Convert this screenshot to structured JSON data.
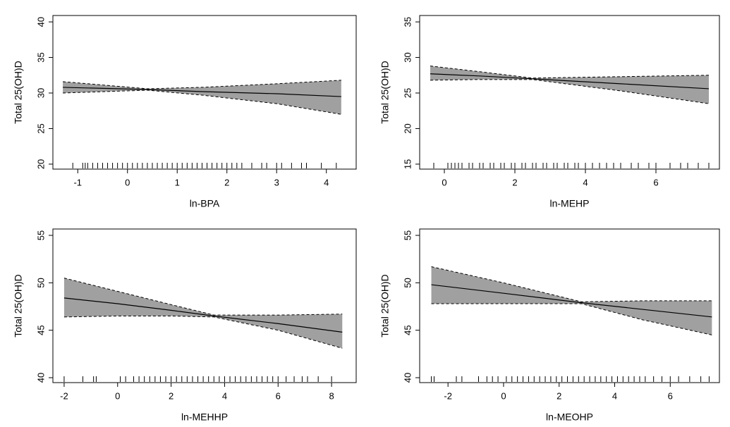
{
  "chart_data": [
    {
      "type": "line",
      "xlabel": "ln-BPA",
      "ylabel": "Total 25(OH)D",
      "x": [
        -1.3,
        0.4,
        1.5,
        3,
        4.3
      ],
      "values": [
        30.8,
        30.5,
        30.2,
        29.9,
        29.5
      ],
      "upper": [
        31.6,
        30.6,
        30.8,
        31.3,
        31.8
      ],
      "lower": [
        30.0,
        30.4,
        29.7,
        28.5,
        27.0
      ],
      "rug": [
        -1.1,
        -0.9,
        -0.85,
        -0.8,
        -0.7,
        -0.6,
        -0.5,
        -0.4,
        -0.3,
        -0.2,
        -0.1,
        0,
        0.1,
        0.2,
        0.3,
        0.4,
        0.5,
        0.6,
        0.7,
        0.8,
        0.9,
        1.0,
        1.1,
        1.2,
        1.3,
        1.4,
        1.5,
        1.6,
        1.7,
        1.8,
        1.9,
        2.0,
        2.1,
        2.2,
        2.3,
        2.5,
        2.7,
        2.8,
        3.0,
        3.1,
        3.3,
        3.5,
        3.6,
        3.9,
        4.2
      ],
      "color": "#000000",
      "band_color": "#a0a0a0",
      "xlim": [
        -1.5,
        4.6
      ],
      "ylim": [
        19.3,
        40.9
      ],
      "xticks": [
        -1,
        0,
        1,
        2,
        3,
        4
      ],
      "yticks": [
        20,
        25,
        30,
        35,
        40
      ]
    },
    {
      "type": "line",
      "xlabel": "ln-MEHP",
      "ylabel": "Total 25(OH)D",
      "x": [
        -0.4,
        1,
        2.5,
        5,
        7.5
      ],
      "values": [
        27.7,
        27.4,
        27.0,
        26.3,
        25.6
      ],
      "upper": [
        28.8,
        28.0,
        27.1,
        27.3,
        27.5
      ],
      "lower": [
        26.8,
        26.9,
        26.9,
        25.3,
        23.5
      ],
      "rug": [
        -0.3,
        0.1,
        0.2,
        0.3,
        0.4,
        0.5,
        0.7,
        0.8,
        1.0,
        1.1,
        1.3,
        1.4,
        1.6,
        1.7,
        1.9,
        2.0,
        2.2,
        2.3,
        2.5,
        2.6,
        2.8,
        2.9,
        3.1,
        3.2,
        3.4,
        3.5,
        3.7,
        3.8,
        4.0,
        4.2,
        4.4,
        4.6,
        4.8,
        5.0,
        5.3,
        5.5,
        5.8,
        6.0,
        6.4,
        6.7,
        6.9,
        7.2,
        7.5
      ],
      "color": "#000000",
      "band_color": "#a0a0a0",
      "xlim": [
        -0.7,
        7.8
      ],
      "ylim": [
        14.3,
        35.9
      ],
      "xticks": [
        0,
        2,
        4,
        6
      ],
      "yticks": [
        15,
        20,
        25,
        30,
        35
      ]
    },
    {
      "type": "line",
      "xlabel": "ln-MEHHP",
      "ylabel": "Total 25(OH)D",
      "x": [
        -2,
        0,
        2,
        3.6,
        6,
        8.4
      ],
      "values": [
        48.4,
        47.8,
        47.1,
        46.5,
        45.7,
        44.8
      ],
      "upper": [
        50.5,
        49.1,
        47.7,
        46.6,
        46.6,
        46.7
      ],
      "lower": [
        46.4,
        46.5,
        46.5,
        46.4,
        45.0,
        43.1
      ],
      "rug": [
        -2.0,
        -1.3,
        -0.9,
        -0.8,
        0.1,
        0.3,
        0.6,
        0.8,
        1.0,
        1.2,
        1.4,
        1.6,
        1.8,
        2.0,
        2.2,
        2.4,
        2.6,
        2.8,
        3.0,
        3.2,
        3.4,
        3.6,
        3.8,
        4.0,
        4.2,
        4.4,
        4.6,
        4.8,
        5.0,
        5.2,
        5.4,
        5.6,
        5.8,
        6.0,
        6.3,
        6.6,
        6.9,
        7.1,
        7.5,
        8.0
      ],
      "color": "#000000",
      "band_color": "#a0a0a0",
      "xlim": [
        -2.42,
        8.92
      ],
      "ylim": [
        39.48,
        55.67
      ],
      "xticks": [
        -2,
        0,
        2,
        4,
        6,
        8
      ],
      "yticks": [
        40,
        45,
        50,
        55
      ]
    },
    {
      "type": "line",
      "xlabel": "ln-MEOHP",
      "ylabel": "Total 25(OH)D",
      "x": [
        -2.6,
        0,
        2.8,
        5,
        7.5
      ],
      "values": [
        49.8,
        48.9,
        47.9,
        47.2,
        46.4
      ],
      "upper": [
        51.7,
        50.0,
        48.0,
        48.1,
        48.1
      ],
      "lower": [
        47.8,
        47.8,
        47.8,
        46.1,
        44.5
      ],
      "rug": [
        -2.6,
        -2.5,
        -1.7,
        -1.5,
        -0.9,
        -0.6,
        -0.4,
        -0.2,
        0.1,
        0.3,
        0.5,
        0.7,
        0.9,
        1.1,
        1.3,
        1.5,
        1.7,
        1.9,
        2.1,
        2.3,
        2.5,
        2.7,
        2.9,
        3.1,
        3.3,
        3.5,
        3.7,
        3.9,
        4.1,
        4.3,
        4.5,
        4.7,
        4.9,
        5.1,
        5.4,
        5.7,
        6.0,
        6.3,
        6.7,
        7.1,
        7.4
      ],
      "color": "#000000",
      "band_color": "#a0a0a0",
      "xlim": [
        -3.02,
        7.77
      ],
      "ylim": [
        39.48,
        55.67
      ],
      "xticks": [
        -2,
        0,
        2,
        4,
        6
      ],
      "yticks": [
        40,
        45,
        50,
        55
      ]
    }
  ]
}
